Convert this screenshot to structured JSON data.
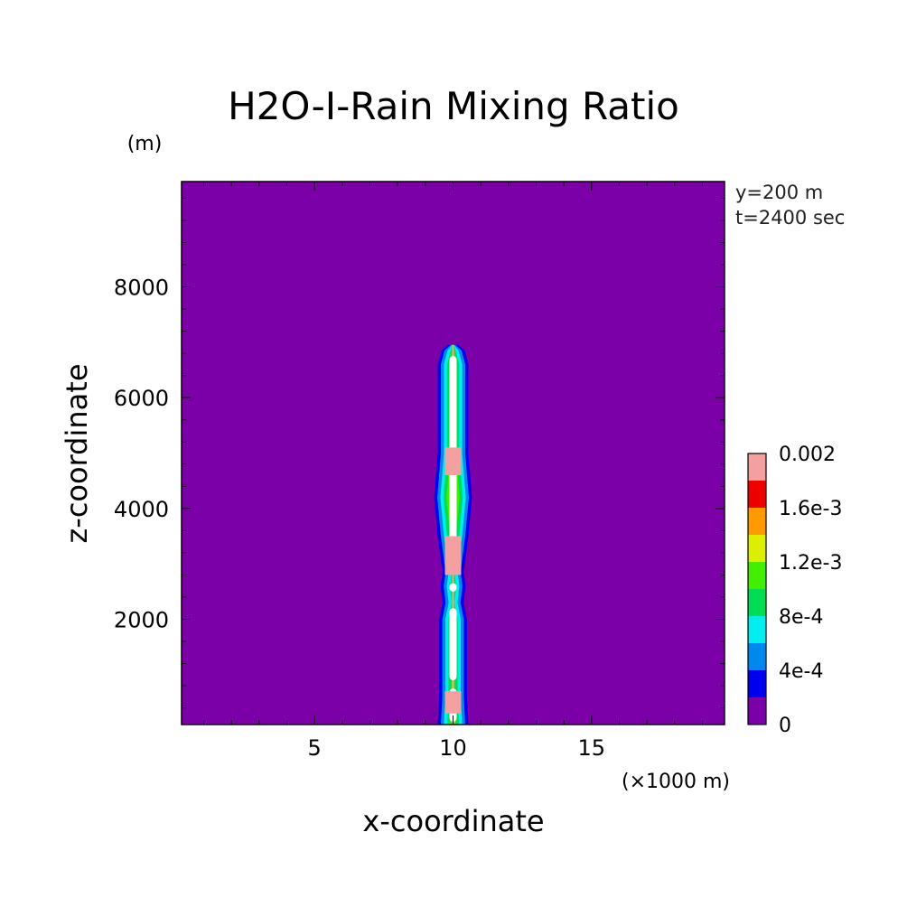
{
  "chart_data": {
    "type": "heatmap",
    "title": "H2O-I-Rain Mixing Ratio",
    "xlabel": "x-coordinate",
    "ylabel": "z-coordinate",
    "x_unit": "(×1000 m)",
    "y_unit": "(m)",
    "annotations": [
      "y=200 m",
      "t=2400 sec"
    ],
    "xlim": [
      0.2,
      19.8
    ],
    "ylim": [
      100,
      9900
    ],
    "x_ticks": [
      5,
      10,
      15
    ],
    "x_tick_labels": [
      "5",
      "10",
      "15"
    ],
    "y_ticks": [
      2000,
      4000,
      6000,
      8000
    ],
    "y_tick_labels": [
      "2000",
      "4000",
      "6000",
      "8000"
    ],
    "background_level": 0,
    "colorbar": {
      "levels": [
        0,
        0.0002,
        0.0004,
        0.0006,
        0.0008,
        0.001,
        0.0012,
        0.0014,
        0.0016,
        0.0018,
        0.002
      ],
      "labels": [
        "0",
        "4e-4",
        "8e-4",
        "1.2e-3",
        "1.6e-3",
        "0.002"
      ],
      "label_levels": [
        0,
        0.0004,
        0.0008,
        0.0012,
        0.0016,
        0.002
      ],
      "colors": [
        "#7b00a8",
        "#0000ee",
        "#0088ee",
        "#00eeee",
        "#00dd55",
        "#44ee00",
        "#ddee00",
        "#ff9900",
        "#ee0000",
        "#f4a0a0"
      ],
      "over_color": "#ffffff"
    },
    "rain_shaft": {
      "x_center": 10,
      "profile": [
        {
          "z": 100,
          "halfwidth": 0.55
        },
        {
          "z": 600,
          "halfwidth": 0.5
        },
        {
          "z": 1200,
          "halfwidth": 0.5
        },
        {
          "z": 2000,
          "halfwidth": 0.5
        },
        {
          "z": 2300,
          "halfwidth": 0.38
        },
        {
          "z": 2600,
          "halfwidth": 0.45
        },
        {
          "z": 2850,
          "halfwidth": 0.38
        },
        {
          "z": 3500,
          "halfwidth": 0.55
        },
        {
          "z": 4200,
          "halfwidth": 0.68
        },
        {
          "z": 5000,
          "halfwidth": 0.55
        },
        {
          "z": 6000,
          "halfwidth": 0.55
        },
        {
          "z": 6600,
          "halfwidth": 0.55
        },
        {
          "z": 6850,
          "halfwidth": 0.42
        },
        {
          "z": 6950,
          "halfwidth": 0.2
        }
      ],
      "core_segments": [
        [
          150,
          750
        ],
        [
          900,
          2200
        ],
        [
          2500,
          2650
        ],
        [
          2800,
          6750
        ]
      ],
      "pink_bands": [
        [
          300,
          700
        ],
        [
          2800,
          3500
        ],
        [
          4600,
          5100
        ]
      ]
    }
  }
}
